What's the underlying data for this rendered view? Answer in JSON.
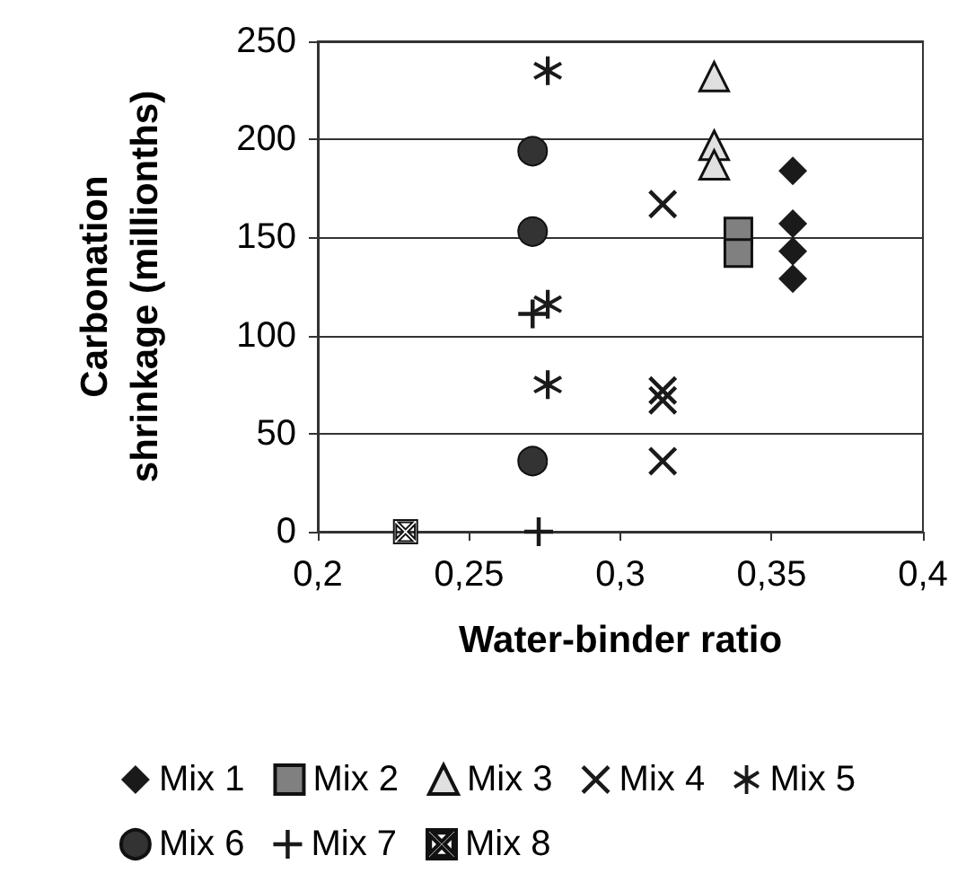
{
  "chart_data": {
    "type": "scatter",
    "xlabel": "Water-binder ratio",
    "ylabel": "Carbonation shrinkage (millionths)",
    "xlim": [
      0.2,
      0.4
    ],
    "xticks": [
      {
        "value": 0.2,
        "label": "0,2"
      },
      {
        "value": 0.25,
        "label": "0,25"
      },
      {
        "value": 0.3,
        "label": "0,3"
      },
      {
        "value": 0.35,
        "label": "0,35"
      },
      {
        "value": 0.4,
        "label": "0,4"
      }
    ],
    "ylim": [
      0,
      250
    ],
    "yticks": [
      0,
      50,
      100,
      150,
      200,
      250
    ],
    "grid": "y",
    "legend": "bottom",
    "series": [
      {
        "name": "Mix 1",
        "color": "#1a1a1a",
        "marker": "diamond",
        "x": [
          0.357,
          0.357,
          0.357,
          0.357
        ],
        "values": [
          184,
          157,
          143,
          129
        ]
      },
      {
        "name": "Mix 2",
        "color": "#808080",
        "marker": "square",
        "x": [
          0.339,
          0.339
        ],
        "values": [
          153,
          142
        ]
      },
      {
        "name": "Mix 3",
        "color": "#e0e0e0",
        "marker": "triangle",
        "x": [
          0.331,
          0.331,
          0.331
        ],
        "values": [
          232,
          197,
          187
        ]
      },
      {
        "name": "Mix 4",
        "color": "#1a1a1a",
        "marker": "cross",
        "x": [
          0.314,
          0.314,
          0.314,
          0.314
        ],
        "values": [
          167,
          72,
          67,
          36
        ]
      },
      {
        "name": "Mix 5",
        "color": "#1a1a1a",
        "marker": "star",
        "x": [
          0.276,
          0.276,
          0.276
        ],
        "values": [
          235,
          116,
          75
        ]
      },
      {
        "name": "Mix 6",
        "color": "#333333",
        "marker": "circle",
        "x": [
          0.271,
          0.271,
          0.271
        ],
        "values": [
          194,
          153,
          36
        ]
      },
      {
        "name": "Mix 7",
        "color": "#1a1a1a",
        "marker": "plus",
        "x": [
          0.273,
          0.271
        ],
        "values": [
          0,
          111
        ]
      },
      {
        "name": "Mix 8",
        "color": "#ffffff",
        "x": [
          0.229
        ],
        "values": [
          0
        ]
      }
    ]
  }
}
